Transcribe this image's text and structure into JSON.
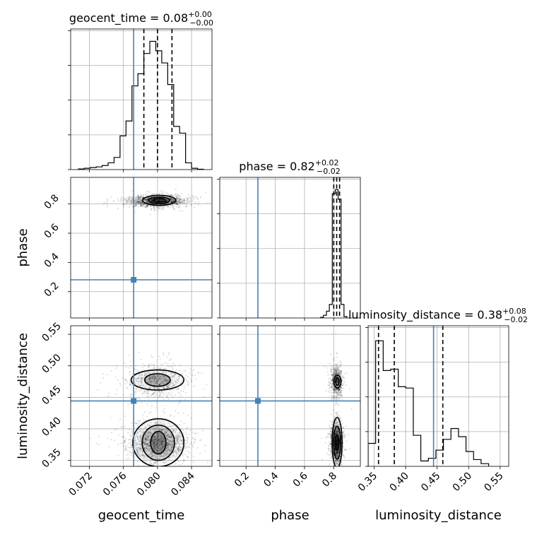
{
  "chart_data": {
    "type": "corner",
    "parameters": [
      "geocent_time",
      "phase",
      "luminosity_distance"
    ],
    "axis_labels": {
      "geocent_time": "geocent_time",
      "phase": "phase",
      "luminosity_distance": "luminosity_distance"
    },
    "titles": [
      {
        "param": "geocent_time",
        "text": "geocent_time = 0.08",
        "plus": "+0.00",
        "minus": "−0.00"
      },
      {
        "param": "phase",
        "text": "phase = 0.82",
        "plus": "+0.02",
        "minus": "−0.02"
      },
      {
        "param": "luminosity_distance",
        "text": "luminosity_distance = 0.38",
        "plus": "+0.08",
        "minus": "−0.02"
      }
    ],
    "ranges": {
      "geocent_time": [
        0.0698,
        0.0864
      ],
      "phase": [
        0.02,
        0.982
      ],
      "luminosity_distance": [
        0.3405,
        0.5636
      ]
    },
    "ticks": {
      "geocent_time": [
        "0.072",
        "0.076",
        "0.080",
        "0.084"
      ],
      "phase": [
        "0.2",
        "0.4",
        "0.6",
        "0.8"
      ],
      "luminosity_distance": [
        "0.35",
        "0.40",
        "0.45",
        "0.50",
        "0.55"
      ]
    },
    "tick_values": {
      "geocent_time": [
        0.072,
        0.076,
        0.08,
        0.084
      ],
      "phase": [
        0.2,
        0.4,
        0.6,
        0.8
      ],
      "luminosity_distance": [
        0.35,
        0.4,
        0.45,
        0.5,
        0.55
      ]
    },
    "truth": {
      "geocent_time": 0.0772,
      "phase": 0.281,
      "luminosity_distance": 0.4443
    },
    "quantiles": {
      "geocent_time": [
        0.0784,
        0.08,
        0.0817
      ],
      "phase": [
        0.8,
        0.82,
        0.84
      ],
      "luminosity_distance": [
        0.357,
        0.382,
        0.459
      ]
    },
    "histograms": {
      "geocent_time": {
        "edges": [
          0.0707,
          0.0714,
          0.0721,
          0.0728,
          0.0735,
          0.0742,
          0.0749,
          0.0756,
          0.0763,
          0.077,
          0.0777,
          0.0784,
          0.0791,
          0.0798,
          0.0805,
          0.0812,
          0.0819,
          0.0826,
          0.0833,
          0.084,
          0.0847,
          0.0854
        ],
        "counts": [
          0.005,
          0.01,
          0.015,
          0.02,
          0.03,
          0.05,
          0.09,
          0.25,
          0.36,
          0.62,
          0.71,
          0.86,
          0.95,
          0.88,
          0.79,
          0.63,
          0.32,
          0.27,
          0.05,
          0.01,
          0.003
        ]
      },
      "phase": {
        "edges": [
          0.71,
          0.73,
          0.75,
          0.77,
          0.79,
          0.81,
          0.83,
          0.85,
          0.87,
          0.89
        ],
        "counts": [
          0.005,
          0.02,
          0.05,
          0.1,
          0.92,
          0.95,
          0.88,
          0.1,
          0.01
        ]
      },
      "luminosity_distance": {
        "edges": [
          0.3405,
          0.3524,
          0.3644,
          0.3763,
          0.3883,
          0.4002,
          0.4122,
          0.4241,
          0.4361,
          0.448,
          0.46,
          0.4719,
          0.4839,
          0.4958,
          0.5078,
          0.5197,
          0.5317
        ],
        "counts": [
          0.17,
          0.93,
          0.71,
          0.72,
          0.59,
          0.58,
          0.23,
          0.04,
          0.06,
          0.12,
          0.2,
          0.28,
          0.22,
          0.11,
          0.05,
          0.02
        ]
      }
    },
    "scatter": [
      {
        "x": "geocent_time",
        "y": "phase",
        "cx": 0.08,
        "cy": 0.82,
        "sx": 0.0016,
        "sy": 0.018,
        "n": 1500
      },
      {
        "x": "geocent_time",
        "y": "luminosity_distance",
        "cx": 0.0799,
        "cy": 0.476,
        "sx": 0.0017,
        "sy": 0.012,
        "n": 700
      },
      {
        "x": "geocent_time",
        "y": "luminosity_distance",
        "cx": 0.0801,
        "cy": 0.378,
        "sx": 0.0016,
        "sy": 0.014,
        "n": 1500
      },
      {
        "x": "phase",
        "y": "luminosity_distance",
        "cx": 0.82,
        "cy": 0.476,
        "sx": 0.018,
        "sy": 0.012,
        "n": 700
      },
      {
        "x": "phase",
        "y": "luminosity_distance",
        "cx": 0.82,
        "cy": 0.378,
        "sx": 0.018,
        "sy": 0.014,
        "n": 1500
      }
    ],
    "contours": [
      {
        "x": "geocent_time",
        "y": "phase",
        "cx": 0.0802,
        "cy": 0.825,
        "rx": [
          0.00075,
          0.00125,
          0.00195
        ],
        "ry": [
          0.012,
          0.022,
          0.034
        ]
      },
      {
        "x": "geocent_time",
        "y": "luminosity_distance",
        "cx": 0.08,
        "cy": 0.4775,
        "rx": [
          0.0015,
          0.0031
        ],
        "ry": [
          0.01,
          0.016
        ]
      },
      {
        "x": "geocent_time",
        "y": "luminosity_distance",
        "cx": 0.0801,
        "cy": 0.378,
        "rx": [
          0.0009,
          0.0019,
          0.003
        ],
        "ry": [
          0.018,
          0.028,
          0.038
        ]
      },
      {
        "x": "phase",
        "y": "luminosity_distance",
        "cx": 0.825,
        "cy": 0.475,
        "rx": [
          0.012,
          0.025
        ],
        "ry": [
          0.006,
          0.01
        ]
      },
      {
        "x": "phase",
        "y": "luminosity_distance",
        "cx": 0.823,
        "cy": 0.378,
        "rx": [
          0.012,
          0.024,
          0.034
        ],
        "ry": [
          0.012,
          0.026,
          0.04
        ]
      }
    ],
    "grid": true,
    "colors": {
      "truth": "#4682b4",
      "hist": "#000000",
      "points": "#000000",
      "grid": "#b0b0b0"
    }
  }
}
